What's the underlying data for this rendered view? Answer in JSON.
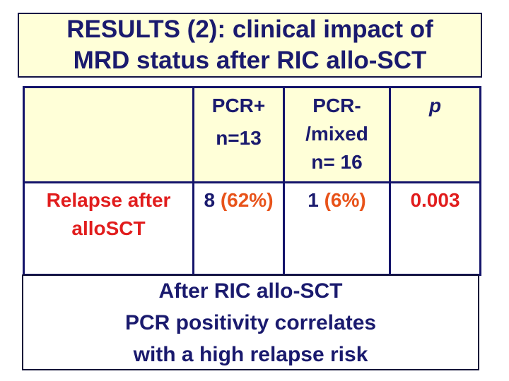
{
  "title": {
    "line1": "RESULTS (2): clinical impact of",
    "line2": "MRD status after RIC allo-SCT"
  },
  "table": {
    "header": {
      "corner": "",
      "pcr_pos": {
        "line1": "PCR+",
        "line2": "n=13"
      },
      "pcr_neg": {
        "line1": "PCR-",
        "line2": "/mixed",
        "line3": "n= 16"
      },
      "p": "p"
    },
    "row": {
      "label_line1": "Relapse after",
      "label_line2": "alloSCT",
      "pcr_pos_count": "8",
      "pcr_pos_pct": "(62%)",
      "pcr_neg_count": "1",
      "pcr_neg_pct": "(6%)",
      "p_value": "0.003"
    }
  },
  "conclusion": {
    "line1": "After RIC allo-SCT",
    "line2": "PCR positivity correlates",
    "line3": "with a high relapse risk"
  },
  "colors": {
    "navy_text": "#1a1a6e",
    "table_border": "#14146b",
    "box_border": "#141445",
    "header_background": "#ffffd8",
    "cell_background": "#ffffff",
    "red_text": "#e11d1d",
    "orange_text": "#e8531a"
  }
}
